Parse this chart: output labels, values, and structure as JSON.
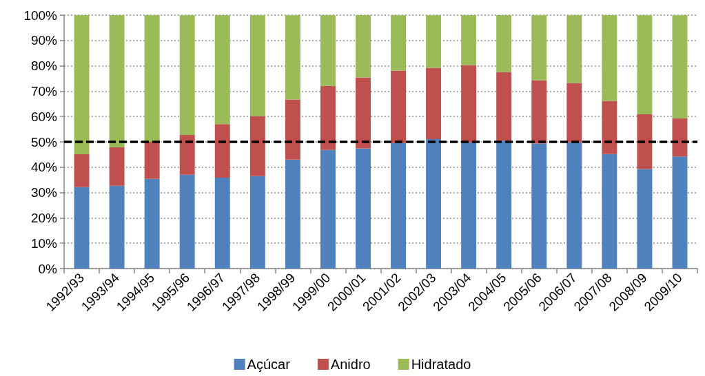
{
  "chart_data": {
    "type": "bar",
    "stacked": true,
    "categories": [
      "1992/93",
      "1993/94",
      "1994/95",
      "1995/96",
      "1996/97",
      "1997/98",
      "1998/99",
      "1999/00",
      "2000/01",
      "2001/02",
      "2002/03",
      "2003/04",
      "2004/05",
      "2005/06",
      "2006/07",
      "2007/08",
      "2008/09",
      "2009/10"
    ],
    "series": [
      {
        "name": "Açúcar",
        "color": "#4f81bd",
        "values": [
          32.1,
          32.7,
          35.4,
          37.0,
          35.9,
          36.5,
          43.0,
          46.8,
          47.4,
          49.5,
          51.1,
          49.8,
          50.5,
          49.3,
          49.8,
          45.2,
          39.3,
          44.2
        ]
      },
      {
        "name": "Anidro",
        "color": "#c0504d",
        "values": [
          13.0,
          15.1,
          14.6,
          15.7,
          21.1,
          23.7,
          23.7,
          25.3,
          28.0,
          28.6,
          28.1,
          30.5,
          27.1,
          25.0,
          23.4,
          21.0,
          21.6,
          15.1
        ]
      },
      {
        "name": "Hidratado",
        "color": "#9bbb59",
        "values": [
          54.9,
          52.2,
          50.0,
          47.3,
          43.0,
          39.8,
          33.3,
          27.9,
          24.6,
          21.9,
          20.8,
          19.7,
          22.4,
          25.7,
          26.8,
          33.8,
          39.1,
          40.7
        ]
      }
    ],
    "ylim": [
      0,
      100
    ],
    "yticks": [
      {
        "value": 0,
        "label": "0%"
      },
      {
        "value": 10,
        "label": "10%"
      },
      {
        "value": 20,
        "label": "20%"
      },
      {
        "value": 30,
        "label": "30%"
      },
      {
        "value": 40,
        "label": "40%"
      },
      {
        "value": 50,
        "label": "50%"
      },
      {
        "value": 60,
        "label": "60%"
      },
      {
        "value": 70,
        "label": "70%"
      },
      {
        "value": 80,
        "label": "80%"
      },
      {
        "value": 90,
        "label": "90%"
      },
      {
        "value": 100,
        "label": "100%"
      }
    ],
    "ref_lines": [
      {
        "axis": "y",
        "value": 50,
        "color": "#000000",
        "line_style": "dashed"
      }
    ],
    "grid": "y",
    "legend": "bottom"
  }
}
